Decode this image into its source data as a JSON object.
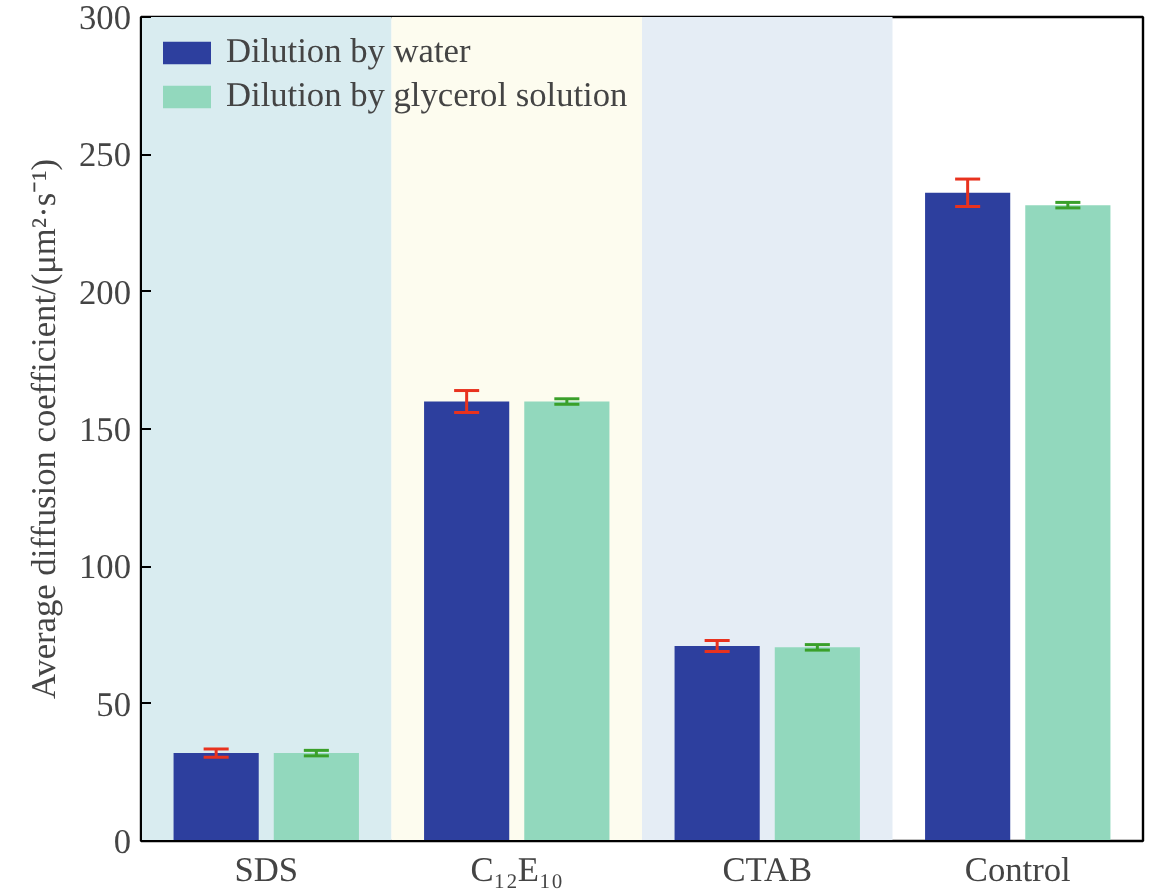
{
  "chart_data": {
    "type": "bar",
    "ylabel": "Average diffusion coefficient/(μm²·s⁻¹)",
    "categories": [
      "SDS",
      "C₁₂E₁₀",
      "CTAB",
      "Control"
    ],
    "series": [
      {
        "name": "Dilution by water",
        "color": "#2d3f9e",
        "values": [
          32,
          160,
          71,
          236
        ],
        "errors": [
          1.5,
          4,
          2,
          5
        ]
      },
      {
        "name": "Dilution by glycerol solution",
        "color": "#92d8bd",
        "values": [
          32,
          160,
          70.5,
          231.5
        ],
        "errors": [
          1,
          1,
          1,
          1
        ]
      }
    ],
    "bands": [
      {
        "axis": "x",
        "from": "SDS",
        "to": "SDS",
        "color": "#d9ecf0"
      },
      {
        "axis": "x",
        "from": "C₁₂E₁₀",
        "to": "C₁₂E₁₀",
        "color": "#fdfcef"
      },
      {
        "axis": "x",
        "from": "CTAB",
        "to": "CTAB",
        "color": "#e5edf5"
      }
    ],
    "ylim": [
      0,
      300
    ],
    "yticks": [
      0,
      50,
      100,
      150,
      200,
      250,
      300
    ],
    "legend": "top left",
    "grid": false
  }
}
